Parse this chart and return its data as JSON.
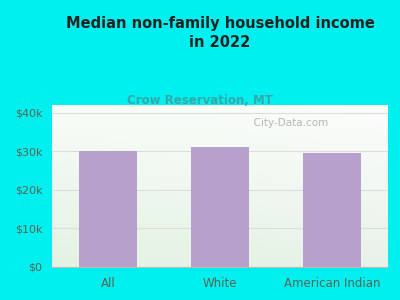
{
  "title": "Median non-family household income\nin 2022",
  "subtitle": "Crow Reservation, MT",
  "categories": [
    "All",
    "White",
    "American Indian"
  ],
  "values": [
    30000,
    31200,
    29500
  ],
  "bar_color": "#b8a0cc",
  "background_color": "#00f0f0",
  "plot_bg_color_topleft": "#e8f0e0",
  "plot_bg_color_topright": "#f0f5ee",
  "plot_bg_color_bottom": "#d8eed8",
  "title_color": "#222222",
  "subtitle_color": "#33aaaa",
  "tick_color": "#556655",
  "yticks": [
    0,
    10000,
    20000,
    30000,
    40000
  ],
  "ytick_labels": [
    "$0",
    "$10k",
    "$20k",
    "$30k",
    "$40k"
  ],
  "ylim": [
    0,
    42000
  ],
  "watermark": "  City-Data.com",
  "watermark_color": "#aaaaaa",
  "grid_color": "#dddddd"
}
